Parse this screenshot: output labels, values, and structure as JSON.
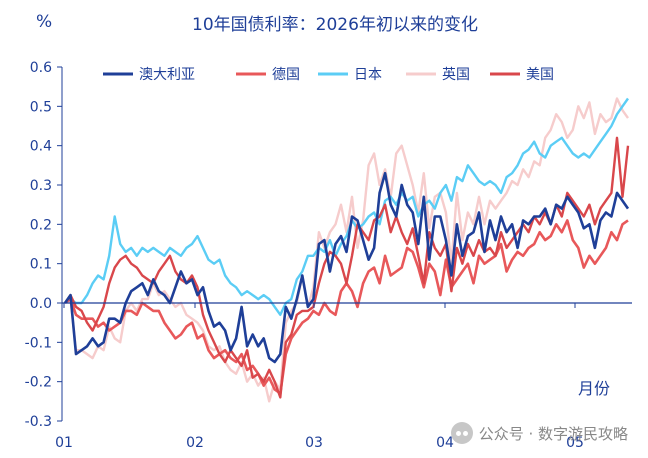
{
  "chart_data": {
    "type": "line",
    "title": "10年国债利率：2026年初以来的变化",
    "ylabel": "%",
    "xlabel": "月份",
    "ylim": [
      -0.3,
      0.6
    ],
    "yticks": [
      "-0.3",
      "-0.2",
      "-0.1",
      "0.0",
      "0.1",
      "0.2",
      "0.3",
      "0.4",
      "0.5",
      "0.6"
    ],
    "xticks": [
      "01",
      "02",
      "03",
      "04",
      "05"
    ],
    "legend_position": "top",
    "series": [
      {
        "name": "澳大利亚",
        "color": "#1f3f98",
        "values": [
          0.0,
          0.02,
          -0.13,
          -0.12,
          -0.11,
          -0.09,
          -0.11,
          -0.1,
          -0.04,
          -0.04,
          -0.05,
          0.0,
          0.03,
          0.04,
          0.05,
          0.02,
          0.06,
          0.03,
          0.02,
          0.0,
          0.04,
          0.08,
          0.05,
          0.06,
          0.02,
          0.04,
          -0.02,
          -0.06,
          -0.05,
          -0.07,
          -0.12,
          -0.09,
          -0.01,
          -0.11,
          -0.08,
          -0.11,
          -0.09,
          -0.14,
          -0.15,
          -0.13,
          -0.01,
          -0.04,
          0.01,
          0.07,
          -0.01,
          0.01,
          0.15,
          0.16,
          0.08,
          0.15,
          0.17,
          0.13,
          0.22,
          0.21,
          0.16,
          0.11,
          0.14,
          0.28,
          0.33,
          0.25,
          0.22,
          0.3,
          0.25,
          0.23,
          0.15,
          0.27,
          0.11,
          0.22,
          0.22,
          0.16,
          0.07,
          0.2,
          0.12,
          0.17,
          0.18,
          0.23,
          0.13,
          0.21,
          0.16,
          0.22,
          0.18,
          0.2,
          0.14,
          0.21,
          0.2,
          0.22,
          0.22,
          0.24,
          0.2,
          0.25,
          0.24,
          0.27,
          0.25,
          0.23,
          0.19,
          0.2,
          0.14,
          0.21,
          0.23,
          0.22,
          0.28,
          0.26,
          0.24
        ]
      },
      {
        "name": "德国",
        "color": "#e8585a",
        "values": [
          0.0,
          0.01,
          -0.03,
          -0.04,
          -0.04,
          -0.04,
          -0.06,
          -0.05,
          -0.07,
          -0.06,
          -0.05,
          -0.02,
          -0.02,
          -0.03,
          0.0,
          -0.01,
          -0.02,
          -0.02,
          -0.05,
          -0.07,
          -0.09,
          -0.08,
          -0.06,
          -0.05,
          -0.09,
          -0.08,
          -0.12,
          -0.14,
          -0.13,
          -0.12,
          -0.14,
          -0.15,
          -0.13,
          -0.17,
          -0.16,
          -0.18,
          -0.21,
          -0.19,
          -0.22,
          -0.23,
          -0.13,
          -0.09,
          -0.07,
          -0.05,
          -0.04,
          -0.02,
          -0.03,
          0.0,
          -0.02,
          -0.03,
          0.03,
          0.05,
          0.03,
          -0.01,
          0.05,
          0.08,
          0.09,
          0.05,
          0.12,
          0.07,
          0.08,
          0.09,
          0.14,
          0.13,
          0.09,
          0.04,
          0.1,
          0.08,
          0.02,
          0.11,
          0.04,
          0.06,
          0.08,
          0.1,
          0.05,
          0.12,
          0.1,
          0.11,
          0.12,
          0.15,
          0.08,
          0.11,
          0.13,
          0.12,
          0.14,
          0.15,
          0.18,
          0.16,
          0.17,
          0.2,
          0.18,
          0.21,
          0.16,
          0.14,
          0.09,
          0.12,
          0.1,
          0.12,
          0.14,
          0.18,
          0.16,
          0.2,
          0.21
        ]
      },
      {
        "name": "日本",
        "color": "#5bcdf5",
        "values": [
          0.0,
          0.01,
          0.0,
          0.0,
          0.02,
          0.05,
          0.07,
          0.06,
          0.12,
          0.22,
          0.15,
          0.13,
          0.14,
          0.12,
          0.14,
          0.13,
          0.14,
          0.13,
          0.12,
          0.14,
          0.13,
          0.12,
          0.14,
          0.15,
          0.17,
          0.14,
          0.11,
          0.1,
          0.11,
          0.07,
          0.05,
          0.04,
          0.02,
          0.03,
          0.02,
          0.01,
          0.02,
          0.01,
          -0.01,
          -0.03,
          0.0,
          0.01,
          0.06,
          0.08,
          0.12,
          0.12,
          0.14,
          0.13,
          0.16,
          0.12,
          0.15,
          0.17,
          0.21,
          0.19,
          0.2,
          0.22,
          0.23,
          0.2,
          0.26,
          0.27,
          0.25,
          0.28,
          0.26,
          0.27,
          0.22,
          0.25,
          0.26,
          0.24,
          0.28,
          0.3,
          0.26,
          0.32,
          0.31,
          0.35,
          0.33,
          0.31,
          0.3,
          0.31,
          0.3,
          0.28,
          0.32,
          0.33,
          0.35,
          0.38,
          0.39,
          0.41,
          0.38,
          0.37,
          0.4,
          0.41,
          0.42,
          0.4,
          0.38,
          0.37,
          0.38,
          0.37,
          0.39,
          0.41,
          0.43,
          0.45,
          0.48,
          0.5,
          0.52
        ]
      },
      {
        "name": "英国",
        "color": "#f6cccc",
        "values": [
          0.0,
          0.01,
          -0.12,
          -0.12,
          -0.13,
          -0.14,
          -0.11,
          -0.12,
          -0.06,
          -0.09,
          -0.1,
          -0.02,
          0.0,
          -0.02,
          0.01,
          0.01,
          0.05,
          0.02,
          0.03,
          0.01,
          -0.01,
          0.0,
          -0.03,
          -0.04,
          -0.05,
          -0.07,
          -0.11,
          -0.12,
          -0.11,
          -0.15,
          -0.17,
          -0.18,
          -0.15,
          -0.2,
          -0.18,
          -0.21,
          -0.19,
          -0.25,
          -0.2,
          -0.22,
          -0.05,
          -0.02,
          0.0,
          0.07,
          -0.01,
          0.04,
          0.18,
          0.14,
          0.18,
          0.2,
          0.25,
          0.18,
          0.27,
          0.14,
          0.21,
          0.35,
          0.38,
          0.3,
          0.34,
          0.27,
          0.38,
          0.4,
          0.35,
          0.3,
          0.23,
          0.33,
          0.19,
          0.27,
          0.28,
          0.23,
          0.1,
          0.28,
          0.16,
          0.23,
          0.2,
          0.27,
          0.2,
          0.26,
          0.24,
          0.26,
          0.28,
          0.31,
          0.3,
          0.34,
          0.32,
          0.36,
          0.35,
          0.42,
          0.44,
          0.48,
          0.46,
          0.42,
          0.44,
          0.5,
          0.47,
          0.51,
          0.43,
          0.48,
          0.46,
          0.47,
          0.52,
          0.49,
          0.47
        ]
      },
      {
        "name": "美国",
        "color": "#d9474b",
        "values": [
          0.0,
          0.02,
          -0.01,
          -0.02,
          -0.05,
          -0.07,
          -0.04,
          -0.01,
          0.05,
          0.09,
          0.11,
          0.12,
          0.1,
          0.09,
          0.07,
          0.06,
          0.05,
          0.08,
          0.1,
          0.12,
          0.08,
          0.06,
          0.05,
          0.07,
          0.04,
          -0.03,
          -0.07,
          -0.1,
          -0.13,
          -0.15,
          -0.12,
          -0.14,
          -0.16,
          -0.12,
          -0.19,
          -0.18,
          -0.2,
          -0.17,
          -0.2,
          -0.24,
          -0.1,
          -0.08,
          -0.03,
          -0.02,
          -0.02,
          -0.01,
          0.05,
          0.1,
          0.13,
          0.12,
          0.1,
          0.05,
          0.12,
          0.2,
          0.18,
          0.16,
          0.21,
          0.22,
          0.25,
          0.18,
          0.22,
          0.18,
          0.15,
          0.19,
          0.12,
          0.05,
          0.18,
          0.14,
          0.12,
          0.15,
          0.03,
          0.14,
          0.1,
          0.15,
          0.12,
          0.16,
          0.13,
          0.14,
          0.12,
          0.18,
          0.14,
          0.16,
          0.18,
          0.2,
          0.18,
          0.22,
          0.2,
          0.23,
          0.2,
          0.25,
          0.22,
          0.28,
          0.26,
          0.24,
          0.22,
          0.25,
          0.2,
          0.24,
          0.26,
          0.28,
          0.42,
          0.27,
          0.4
        ]
      }
    ]
  },
  "watermark": {
    "text": "公众号 · 数字游民攻略",
    "icon": "wechat-icon"
  }
}
